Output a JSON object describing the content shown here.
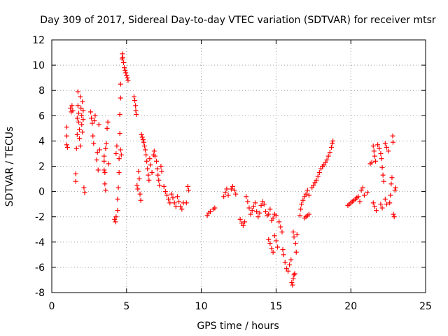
{
  "chart_data": {
    "type": "scatter",
    "title": "Day 309 of 2017, Sidereal Day-to-day VTEC variation (SDTVAR) for receiver mtsr",
    "xlabel": "GPS time / hours",
    "ylabel": "SDTVAR / TECUs",
    "xlim": [
      0,
      25
    ],
    "ylim": [
      -8,
      12
    ],
    "xticks": [
      0,
      5,
      10,
      15,
      20,
      25
    ],
    "yticks": [
      -8,
      -6,
      -4,
      -2,
      0,
      2,
      4,
      6,
      8,
      10,
      12
    ],
    "grid": true,
    "marker": "+",
    "series": [
      {
        "name": "SDTVAR",
        "color": "#ff0000",
        "points": [
          [
            1.0,
            5.1
          ],
          [
            1.0,
            4.4
          ],
          [
            1.0,
            3.7
          ],
          [
            1.05,
            3.5
          ],
          [
            1.25,
            6.6
          ],
          [
            1.3,
            6.3
          ],
          [
            1.35,
            6.8
          ],
          [
            1.4,
            6.4
          ],
          [
            1.6,
            1.4
          ],
          [
            1.6,
            0.8
          ],
          [
            1.65,
            3.4
          ],
          [
            1.7,
            5.8
          ],
          [
            1.7,
            4.5
          ],
          [
            1.75,
            7.9
          ],
          [
            1.75,
            6.8
          ],
          [
            1.8,
            6.2
          ],
          [
            1.8,
            5.5
          ],
          [
            1.85,
            4.9
          ],
          [
            1.85,
            4.2
          ],
          [
            1.9,
            3.6
          ],
          [
            1.9,
            7.5
          ],
          [
            1.95,
            6.6
          ],
          [
            2.0,
            6.0
          ],
          [
            2.0,
            5.3
          ],
          [
            2.05,
            4.7
          ],
          [
            2.05,
            7.1
          ],
          [
            2.1,
            6.4
          ],
          [
            2.1,
            5.7
          ],
          [
            2.15,
            0.3
          ],
          [
            2.2,
            -0.1
          ],
          [
            2.6,
            6.3
          ],
          [
            2.65,
            5.8
          ],
          [
            2.7,
            5.4
          ],
          [
            2.75,
            4.4
          ],
          [
            2.8,
            3.8
          ],
          [
            2.85,
            5.6
          ],
          [
            2.9,
            6.0
          ],
          [
            3.0,
            2.5
          ],
          [
            3.05,
            3.1
          ],
          [
            3.1,
            1.7
          ],
          [
            3.15,
            5.3
          ],
          [
            3.2,
            3.3
          ],
          [
            3.5,
            2.8
          ],
          [
            3.5,
            2.4
          ],
          [
            3.5,
            1.7
          ],
          [
            3.55,
            1.5
          ],
          [
            3.55,
            0.6
          ],
          [
            3.6,
            0.1
          ],
          [
            3.6,
            3.4
          ],
          [
            3.65,
            3.8
          ],
          [
            3.7,
            5.0
          ],
          [
            3.75,
            5.5
          ],
          [
            3.8,
            2.2
          ],
          [
            4.2,
            -2.2
          ],
          [
            4.25,
            -2.4
          ],
          [
            4.3,
            -2.0
          ],
          [
            4.3,
            3.0
          ],
          [
            4.35,
            3.6
          ],
          [
            4.4,
            -1.5
          ],
          [
            4.4,
            -0.6
          ],
          [
            4.45,
            0.3
          ],
          [
            4.5,
            1.5
          ],
          [
            4.5,
            2.6
          ],
          [
            4.55,
            4.6
          ],
          [
            4.55,
            6.1
          ],
          [
            4.6,
            7.4
          ],
          [
            4.6,
            8.5
          ],
          [
            4.6,
            3.3
          ],
          [
            4.65,
            2.9
          ],
          [
            4.7,
            10.5
          ],
          [
            4.72,
            10.9
          ],
          [
            4.75,
            10.6
          ],
          [
            4.8,
            10.2
          ],
          [
            4.85,
            9.8
          ],
          [
            4.9,
            9.6
          ],
          [
            4.95,
            9.4
          ],
          [
            5.0,
            9.2
          ],
          [
            5.05,
            9.0
          ],
          [
            5.1,
            8.8
          ],
          [
            5.5,
            7.5
          ],
          [
            5.55,
            7.2
          ],
          [
            5.6,
            6.8
          ],
          [
            5.62,
            6.4
          ],
          [
            5.65,
            6.1
          ],
          [
            5.7,
            0.5
          ],
          [
            5.75,
            0.2
          ],
          [
            5.8,
            1.6
          ],
          [
            5.85,
            1.0
          ],
          [
            5.9,
            -0.2
          ],
          [
            5.95,
            -0.7
          ],
          [
            6.0,
            4.5
          ],
          [
            6.05,
            4.3
          ],
          [
            6.1,
            4.1
          ],
          [
            6.15,
            3.9
          ],
          [
            6.2,
            3.6
          ],
          [
            6.25,
            3.3
          ],
          [
            6.3,
            2.9
          ],
          [
            6.35,
            2.4
          ],
          [
            6.4,
            1.8
          ],
          [
            6.45,
            1.3
          ],
          [
            6.5,
            0.9
          ],
          [
            6.55,
            2.6
          ],
          [
            6.6,
            2.1
          ],
          [
            6.7,
            1.5
          ],
          [
            6.8,
            2.9
          ],
          [
            6.85,
            3.2
          ],
          [
            6.9,
            2.8
          ],
          [
            7.0,
            2.4
          ],
          [
            7.05,
            1.8
          ],
          [
            7.1,
            1.3
          ],
          [
            7.15,
            0.9
          ],
          [
            7.2,
            0.5
          ],
          [
            7.3,
            2.0
          ],
          [
            7.35,
            1.6
          ],
          [
            7.5,
            0.4
          ],
          [
            7.6,
            0.0
          ],
          [
            7.7,
            -0.3
          ],
          [
            7.8,
            -0.6
          ],
          [
            7.9,
            -0.9
          ],
          [
            8.0,
            -0.2
          ],
          [
            8.1,
            -0.5
          ],
          [
            8.2,
            -0.9
          ],
          [
            8.3,
            -1.2
          ],
          [
            8.4,
            -0.4
          ],
          [
            8.5,
            -0.8
          ],
          [
            8.6,
            -1.2
          ],
          [
            8.7,
            -1.4
          ],
          [
            8.8,
            -0.9
          ],
          [
            9.0,
            -0.9
          ],
          [
            9.1,
            0.4
          ],
          [
            9.15,
            0.1
          ],
          [
            10.4,
            -1.9
          ],
          [
            10.5,
            -1.7
          ],
          [
            10.6,
            -1.6
          ],
          [
            10.8,
            -1.4
          ],
          [
            10.9,
            -1.3
          ],
          [
            11.5,
            -0.4
          ],
          [
            11.6,
            -0.1
          ],
          [
            11.7,
            0.2
          ],
          [
            11.8,
            -0.3
          ],
          [
            12.0,
            0.2
          ],
          [
            12.1,
            0.4
          ],
          [
            12.2,
            0.1
          ],
          [
            12.3,
            -0.2
          ],
          [
            12.6,
            -2.2
          ],
          [
            12.7,
            -2.5
          ],
          [
            12.8,
            -2.7
          ],
          [
            12.9,
            -2.4
          ],
          [
            13.0,
            -0.4
          ],
          [
            13.1,
            -0.8
          ],
          [
            13.2,
            -1.3
          ],
          [
            13.3,
            -1.8
          ],
          [
            13.4,
            -1.5
          ],
          [
            13.5,
            -1.2
          ],
          [
            13.6,
            -0.9
          ],
          [
            13.7,
            -1.6
          ],
          [
            13.8,
            -2.0
          ],
          [
            13.9,
            -1.7
          ],
          [
            14.0,
            -1.1
          ],
          [
            14.1,
            -0.8
          ],
          [
            14.2,
            -1.0
          ],
          [
            14.3,
            -1.6
          ],
          [
            14.4,
            -1.9
          ],
          [
            14.5,
            -1.8
          ],
          [
            14.6,
            -1.4
          ],
          [
            14.7,
            -2.3
          ],
          [
            14.8,
            -2.1
          ],
          [
            14.9,
            -1.8
          ],
          [
            15.0,
            -1.9
          ],
          [
            14.5,
            -3.8
          ],
          [
            14.6,
            -4.1
          ],
          [
            14.7,
            -4.5
          ],
          [
            14.8,
            -4.8
          ],
          [
            14.9,
            -3.5
          ],
          [
            15.0,
            -3.9
          ],
          [
            15.1,
            -4.4
          ],
          [
            15.2,
            -2.4
          ],
          [
            15.3,
            -2.8
          ],
          [
            15.4,
            -3.2
          ],
          [
            15.45,
            -4.6
          ],
          [
            15.5,
            -5.0
          ],
          [
            15.6,
            -5.6
          ],
          [
            15.7,
            -6.1
          ],
          [
            15.8,
            -6.3
          ],
          [
            15.9,
            -5.8
          ],
          [
            16.0,
            -5.4
          ],
          [
            16.05,
            -7.2
          ],
          [
            16.1,
            -7.4
          ],
          [
            16.15,
            -6.9
          ],
          [
            16.2,
            -6.6
          ],
          [
            16.25,
            -6.5
          ],
          [
            16.15,
            -3.2
          ],
          [
            16.2,
            -3.6
          ],
          [
            16.3,
            -4.1
          ],
          [
            16.35,
            -4.8
          ],
          [
            16.4,
            -3.4
          ],
          [
            16.6,
            -1.9
          ],
          [
            16.65,
            -1.4
          ],
          [
            16.7,
            -1.0
          ],
          [
            16.8,
            -0.7
          ],
          [
            16.9,
            -0.4
          ],
          [
            16.9,
            -2.1
          ],
          [
            17.0,
            -2.0
          ],
          [
            17.1,
            -1.9
          ],
          [
            17.2,
            -1.8
          ],
          [
            17.0,
            -0.2
          ],
          [
            17.1,
            0.1
          ],
          [
            17.2,
            -0.3
          ],
          [
            17.4,
            0.3
          ],
          [
            17.5,
            0.5
          ],
          [
            17.6,
            0.7
          ],
          [
            17.7,
            0.9
          ],
          [
            17.8,
            1.2
          ],
          [
            17.9,
            1.5
          ],
          [
            18.0,
            1.8
          ],
          [
            18.1,
            2.0
          ],
          [
            18.2,
            2.1
          ],
          [
            18.3,
            2.3
          ],
          [
            18.4,
            2.5
          ],
          [
            18.5,
            2.8
          ],
          [
            18.6,
            3.1
          ],
          [
            18.7,
            3.5
          ],
          [
            18.75,
            3.8
          ],
          [
            18.8,
            4.0
          ],
          [
            19.8,
            -1.1
          ],
          [
            19.9,
            -1.0
          ],
          [
            20.0,
            -0.9
          ],
          [
            20.1,
            -0.8
          ],
          [
            20.2,
            -0.7
          ],
          [
            20.3,
            -0.6
          ],
          [
            20.4,
            -0.5
          ],
          [
            20.5,
            -0.4
          ],
          [
            20.6,
            -0.8
          ],
          [
            20.7,
            0.1
          ],
          [
            20.8,
            0.3
          ],
          [
            20.9,
            -0.3
          ],
          [
            21.1,
            -0.1
          ],
          [
            21.3,
            2.2
          ],
          [
            21.4,
            2.3
          ],
          [
            21.5,
            3.6
          ],
          [
            21.55,
            3.2
          ],
          [
            21.6,
            2.8
          ],
          [
            21.65,
            2.4
          ],
          [
            21.5,
            -0.9
          ],
          [
            21.6,
            -1.2
          ],
          [
            21.7,
            -1.5
          ],
          [
            21.8,
            3.7
          ],
          [
            21.9,
            3.4
          ],
          [
            22.0,
            3.0
          ],
          [
            22.05,
            2.6
          ],
          [
            22.1,
            1.9
          ],
          [
            22.15,
            1.3
          ],
          [
            22.2,
            0.8
          ],
          [
            22.3,
            -0.6
          ],
          [
            22.4,
            -1.0
          ],
          [
            22.0,
            -1.0
          ],
          [
            22.1,
            -1.3
          ],
          [
            22.3,
            3.8
          ],
          [
            22.4,
            3.5
          ],
          [
            22.5,
            3.2
          ],
          [
            22.6,
            -0.9
          ],
          [
            22.65,
            -0.3
          ],
          [
            22.7,
            0.6
          ],
          [
            22.75,
            1.1
          ],
          [
            22.8,
            4.4
          ],
          [
            22.82,
            3.9
          ],
          [
            22.85,
            -1.8
          ],
          [
            22.9,
            -2.0
          ],
          [
            22.95,
            0.1
          ],
          [
            23.0,
            0.3
          ]
        ]
      }
    ]
  }
}
